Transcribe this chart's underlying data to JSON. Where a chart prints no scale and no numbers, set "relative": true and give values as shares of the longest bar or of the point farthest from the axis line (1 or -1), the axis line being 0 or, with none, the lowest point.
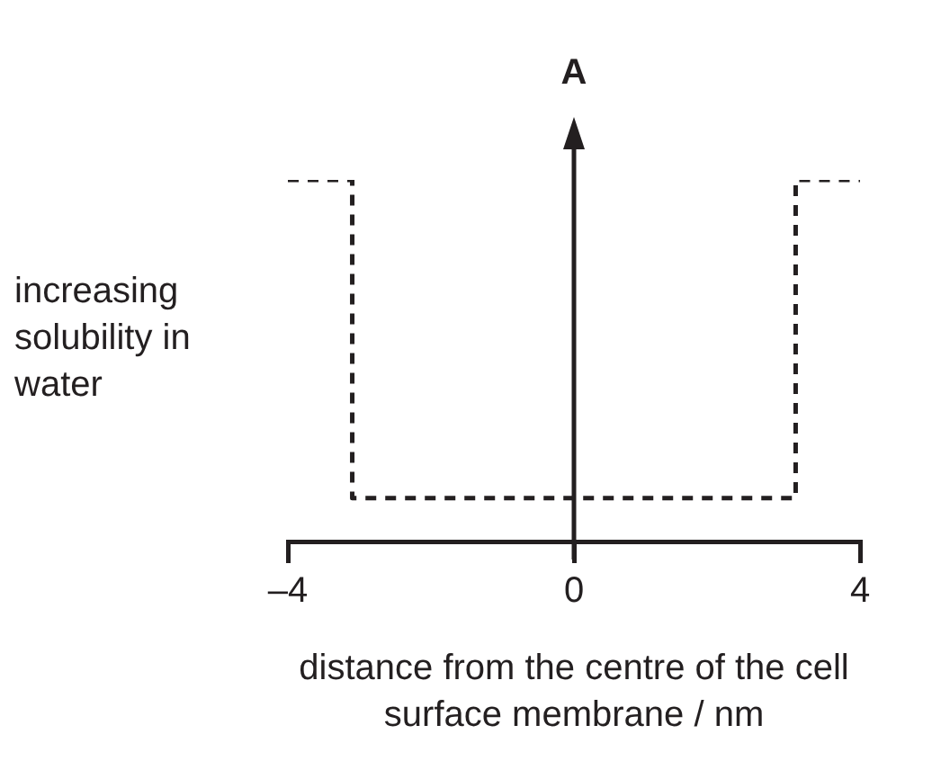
{
  "chart_data": {
    "type": "step",
    "relative": true,
    "xlabel": "distance from the centre of the cell surface membrane / nm",
    "ylabel": "increasing solubility in water",
    "annotations": [
      "A"
    ],
    "xlim": [
      -4,
      4
    ],
    "xticks": [
      {
        "value": -4,
        "label": "–4"
      },
      0,
      4
    ],
    "line_style": "dashed",
    "marker": "none",
    "series": [
      {
        "color": "#231f20",
        "x": [
          -4,
          -3.1,
          3.1,
          4
        ],
        "values": [
          1,
          0.12,
          1,
          1
        ]
      }
    ]
  }
}
